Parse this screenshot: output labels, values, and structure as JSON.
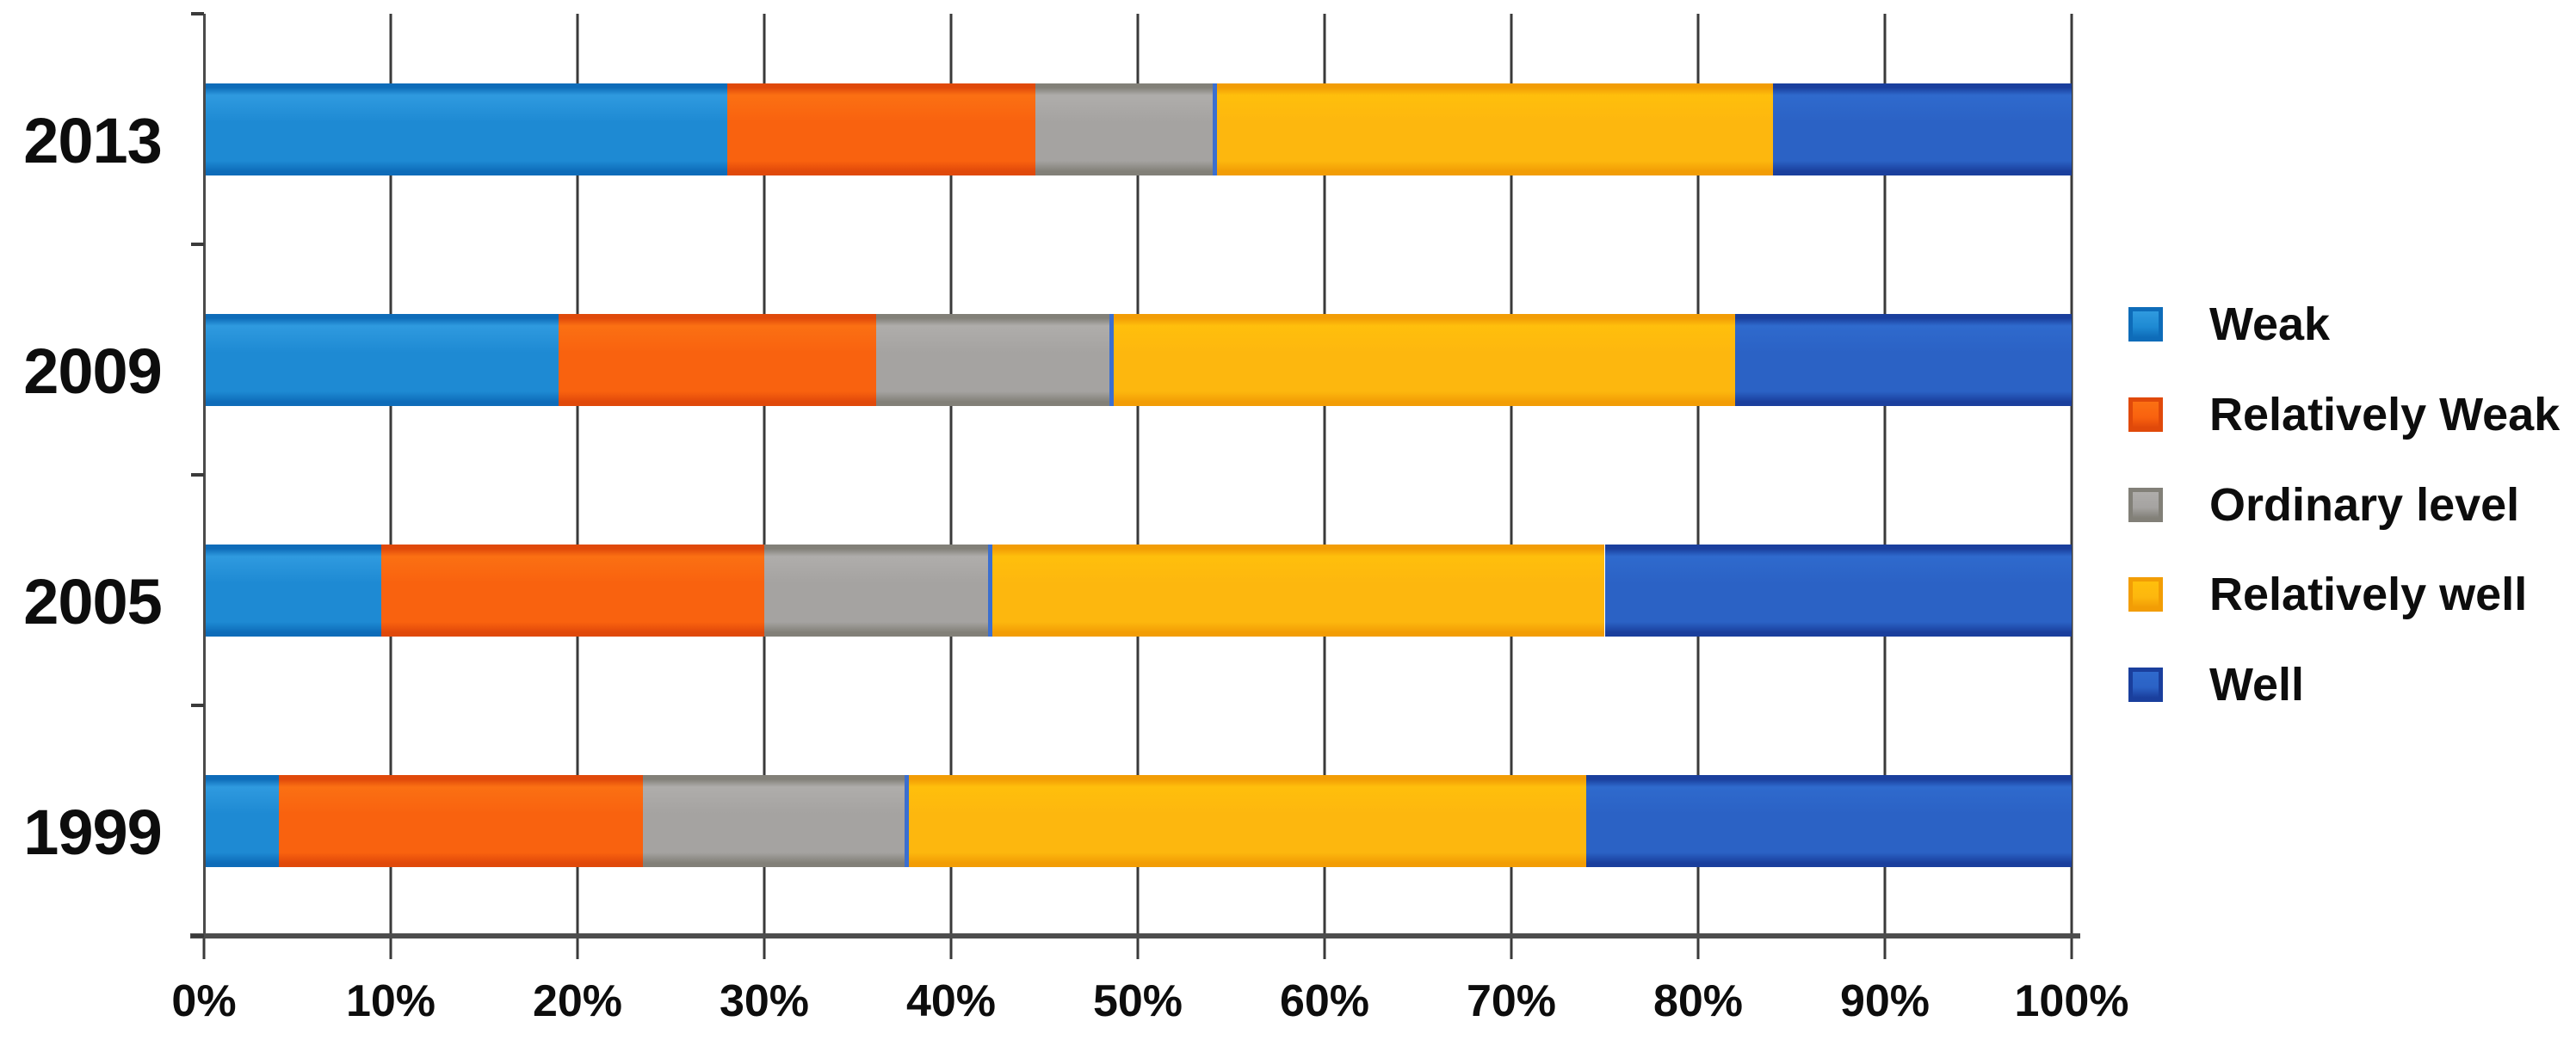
{
  "chart_data": {
    "type": "stacked-bar-horizontal",
    "title": "",
    "xlabel": "",
    "ylabel": "",
    "categories": [
      "2013",
      "2009",
      "2005",
      "1999"
    ],
    "series": [
      {
        "name": "Weak",
        "color": "#1E8AD3",
        "color_light": "#2F9ADF",
        "color_dark": "#0E6CB9",
        "values": [
          28,
          19,
          9.5,
          4
        ]
      },
      {
        "name": "Relatively Weak",
        "color": "#F9620F",
        "color_light": "#FB7013",
        "color_dark": "#E0490A",
        "values": [
          16.5,
          17,
          20.5,
          19.5
        ]
      },
      {
        "name": "Ordinary level",
        "color": "#A5A3A1",
        "color_light": "#AFADAB",
        "color_dark": "#828078",
        "values": [
          9.5,
          12.5,
          12,
          14
        ]
      },
      {
        "name": "Relatively well",
        "color": "#FDB70E",
        "color_light": "#FFBF0C",
        "color_dark": "#F29D05",
        "divider_color": "#3B6FD0",
        "values": [
          30,
          33.5,
          33,
          36.5
        ]
      },
      {
        "name": "Well",
        "color": "#2B62C5",
        "color_light": "#2F6ACD",
        "color_dark": "#1A3F9D",
        "values": [
          16,
          18,
          25,
          26
        ]
      }
    ],
    "xlim": [
      0,
      100
    ],
    "x_ticks": [
      0,
      10,
      20,
      30,
      40,
      50,
      60,
      70,
      80,
      90,
      100
    ],
    "x_tick_labels": [
      "0%",
      "10%",
      "20%",
      "30%",
      "40%",
      "50%",
      "60%",
      "70%",
      "80%",
      "90%",
      "100%"
    ],
    "grid": "vertical",
    "legend_position": "right",
    "grid_color": "#3A3A3A",
    "axis_color": "#4D4D4D",
    "text_color": "#0D0D0D",
    "background_color": "#FFFFFF"
  }
}
